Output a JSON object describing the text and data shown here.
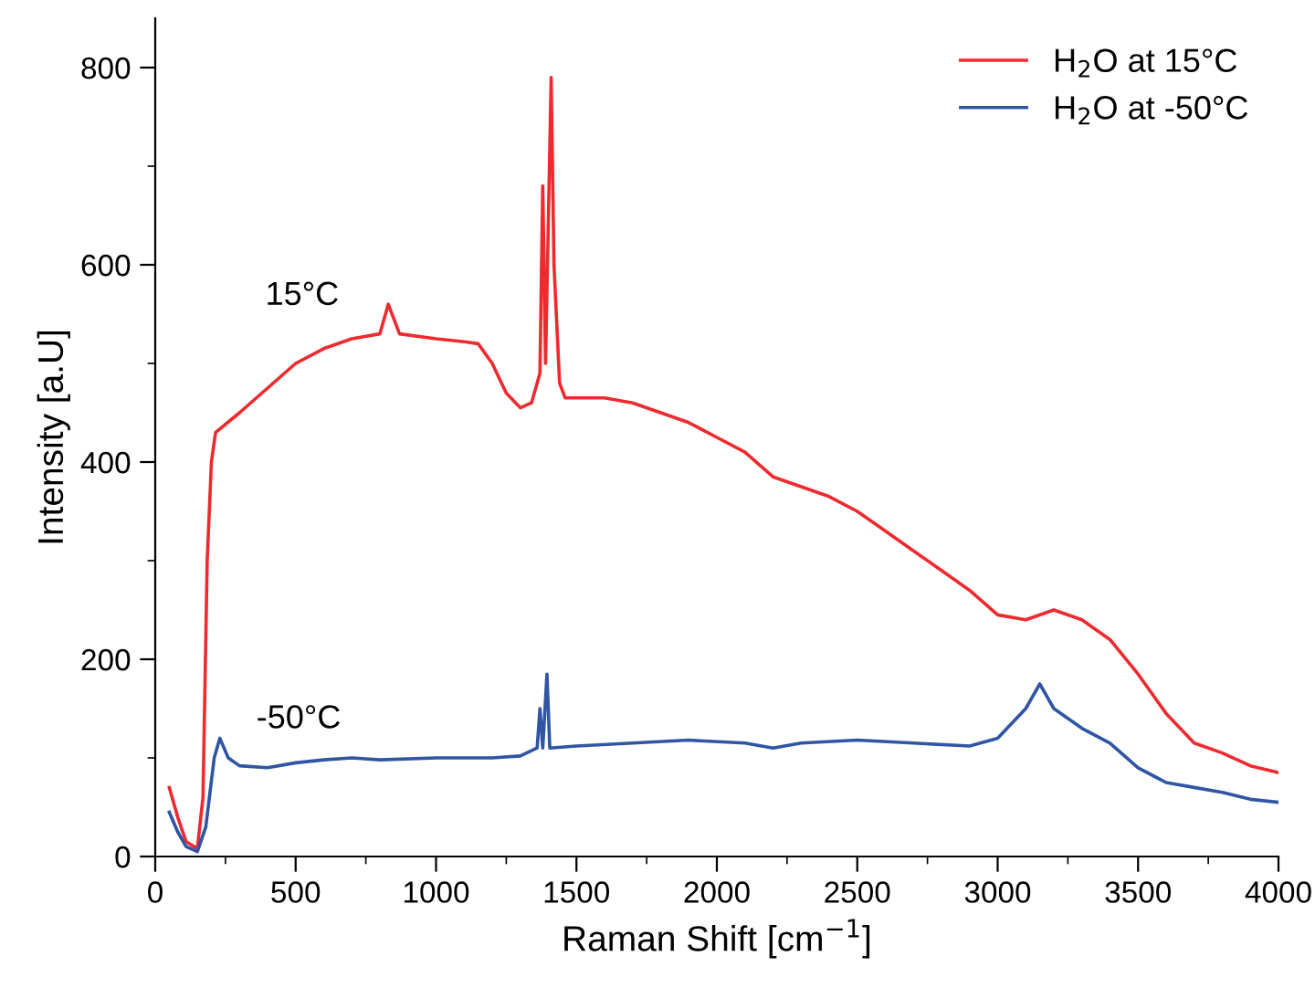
{
  "chart_data": {
    "type": "line",
    "xlabel": "Raman Shift [cm$^{−1}$]",
    "ylabel": "Intensity [a.U]",
    "xlim": [
      0,
      4000
    ],
    "xticks": [
      0,
      500,
      1000,
      1500,
      2000,
      2500,
      3000,
      3500,
      4000
    ],
    "ylim": [
      0,
      850
    ],
    "yticks": [
      0,
      200,
      400,
      600,
      800
    ],
    "grid": false,
    "legend": "top right",
    "series": [
      {
        "name": "H$_{2}$O at 15°C",
        "color": "#ee2a2f",
        "x": [
          50,
          80,
          110,
          150,
          170,
          185,
          200,
          215,
          300,
          400,
          500,
          600,
          700,
          800,
          830,
          870,
          1000,
          1100,
          1150,
          1200,
          1250,
          1300,
          1340,
          1370,
          1380,
          1390,
          1410,
          1420,
          1440,
          1460,
          1500,
          1600,
          1700,
          1800,
          1900,
          2000,
          2100,
          2200,
          2300,
          2400,
          2500,
          2600,
          2700,
          2800,
          2900,
          3000,
          3100,
          3200,
          3300,
          3400,
          3500,
          3600,
          3700,
          3800,
          3900,
          4000
        ],
        "values": [
          70,
          40,
          15,
          8,
          60,
          300,
          400,
          430,
          450,
          475,
          500,
          515,
          525,
          530,
          560,
          530,
          525,
          522,
          520,
          500,
          470,
          455,
          460,
          490,
          680,
          500,
          790,
          600,
          480,
          465,
          465,
          465,
          460,
          450,
          440,
          425,
          410,
          385,
          375,
          365,
          350,
          330,
          310,
          290,
          270,
          245,
          240,
          250,
          240,
          220,
          185,
          145,
          115,
          105,
          92,
          85
        ]
      },
      {
        "name": "H$_{2}$O at -50°C",
        "color": "#2f55a4",
        "x": [
          50,
          80,
          110,
          150,
          180,
          210,
          230,
          260,
          300,
          400,
          500,
          600,
          700,
          800,
          1000,
          1200,
          1300,
          1360,
          1370,
          1380,
          1395,
          1405,
          1500,
          1700,
          1900,
          2100,
          2200,
          2300,
          2500,
          2700,
          2900,
          3000,
          3100,
          3150,
          3200,
          3300,
          3400,
          3500,
          3600,
          3700,
          3800,
          3900,
          4000
        ],
        "values": [
          45,
          25,
          10,
          5,
          30,
          100,
          120,
          100,
          92,
          90,
          95,
          98,
          100,
          98,
          100,
          100,
          102,
          110,
          150,
          110,
          185,
          110,
          112,
          115,
          118,
          115,
          110,
          115,
          118,
          115,
          112,
          120,
          150,
          175,
          150,
          130,
          115,
          90,
          75,
          70,
          65,
          58,
          55
        ]
      }
    ],
    "annotations": [
      "15°C",
      "-50°C"
    ]
  }
}
